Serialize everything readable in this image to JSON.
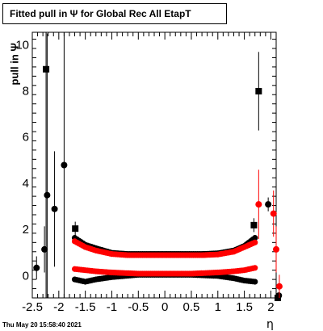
{
  "chart_data": {
    "type": "scatter",
    "title": "Fitted pull in  Ψ  for Global Rec All EtapT",
    "xlabel": "η",
    "ylabel": "pull in  Ψ",
    "xlim": [
      -2.5,
      2.1
    ],
    "ylim": [
      -1,
      10.5
    ],
    "x_ticks": [
      "-2.5",
      "-2",
      "-1.5",
      "-1",
      "-0.5",
      "0",
      "0.5",
      "1",
      "1.5",
      "2"
    ],
    "y_ticks": [
      "0",
      "2",
      "4",
      "6",
      "8",
      "10"
    ],
    "series": [
      {
        "color": "#000000",
        "marker": "square",
        "points": [
          {
            "x": -2.24,
            "y": 8.9,
            "err": 10.0
          },
          {
            "x": -1.69,
            "y": 2.0,
            "err": 0.3
          },
          {
            "x": 1.68,
            "y": 2.15,
            "err": 0.3
          },
          {
            "x": 1.77,
            "y": 7.95,
            "err": 1.7
          },
          {
            "x": 2.13,
            "y": -1.0,
            "err": 0.1
          }
        ],
        "band_upper": [
          [
            -1.7,
            1.6
          ],
          [
            -1.5,
            1.3
          ],
          [
            -1.3,
            1.15
          ],
          [
            -1.0,
            0.95
          ],
          [
            -0.7,
            0.9
          ],
          [
            -0.3,
            0.9
          ],
          [
            0.0,
            0.9
          ],
          [
            0.3,
            0.9
          ],
          [
            0.7,
            0.9
          ],
          [
            1.0,
            0.93
          ],
          [
            1.3,
            1.05
          ],
          [
            1.5,
            1.25
          ],
          [
            1.7,
            1.6
          ]
        ],
        "band_lower": [
          [
            -1.7,
            -0.2
          ],
          [
            -1.5,
            -0.3
          ],
          [
            -1.3,
            -0.2
          ],
          [
            -1.0,
            -0.1
          ],
          [
            -0.5,
            0.0
          ],
          [
            0.0,
            0.0
          ],
          [
            0.5,
            0.0
          ],
          [
            1.0,
            -0.05
          ],
          [
            1.3,
            -0.15
          ],
          [
            1.5,
            -0.25
          ],
          [
            1.7,
            -0.3
          ]
        ]
      },
      {
        "color": "#000000",
        "marker": "circle",
        "points": [
          {
            "x": -2.42,
            "y": 0.3,
            "err": 0.5
          },
          {
            "x": -2.27,
            "y": 1.1,
            "err": 1.0
          },
          {
            "x": -2.22,
            "y": 3.45,
            "err": 7.0
          },
          {
            "x": -2.08,
            "y": 2.85,
            "err": 2.5
          },
          {
            "x": -1.9,
            "y": 4.75,
            "err": 6.0
          },
          {
            "x": 1.95,
            "y": 3.05,
            "err": 0.3
          },
          {
            "x": 2.15,
            "y": -0.9,
            "err": 0.1
          }
        ]
      },
      {
        "color": "#ff0000",
        "marker": "circle",
        "points": [
          {
            "x": 1.77,
            "y": 3.05,
            "err": 1.5
          },
          {
            "x": 2.05,
            "y": 2.65,
            "err": 1.0
          },
          {
            "x": 2.1,
            "y": 1.1,
            "err": 1.0
          },
          {
            "x": 2.16,
            "y": -0.5,
            "err": 0.5
          }
        ],
        "band_upper": [
          [
            -1.7,
            1.45
          ],
          [
            -1.5,
            1.2
          ],
          [
            -1.3,
            1.05
          ],
          [
            -1.0,
            0.9
          ],
          [
            -0.7,
            0.85
          ],
          [
            -0.3,
            0.85
          ],
          [
            0.0,
            0.85
          ],
          [
            0.3,
            0.85
          ],
          [
            0.7,
            0.85
          ],
          [
            1.0,
            0.88
          ],
          [
            1.3,
            1.0
          ],
          [
            1.5,
            1.2
          ],
          [
            1.7,
            1.4
          ]
        ],
        "band_lower": [
          [
            -1.7,
            0.25
          ],
          [
            -1.5,
            0.2
          ],
          [
            -1.3,
            0.15
          ],
          [
            -1.0,
            0.1
          ],
          [
            -0.5,
            0.05
          ],
          [
            0.0,
            0.05
          ],
          [
            0.5,
            0.05
          ],
          [
            1.0,
            0.1
          ],
          [
            1.3,
            0.15
          ],
          [
            1.5,
            0.2
          ],
          [
            1.7,
            0.3
          ]
        ]
      }
    ]
  },
  "timestamp": "Thu May 20 15:58:40 2021"
}
